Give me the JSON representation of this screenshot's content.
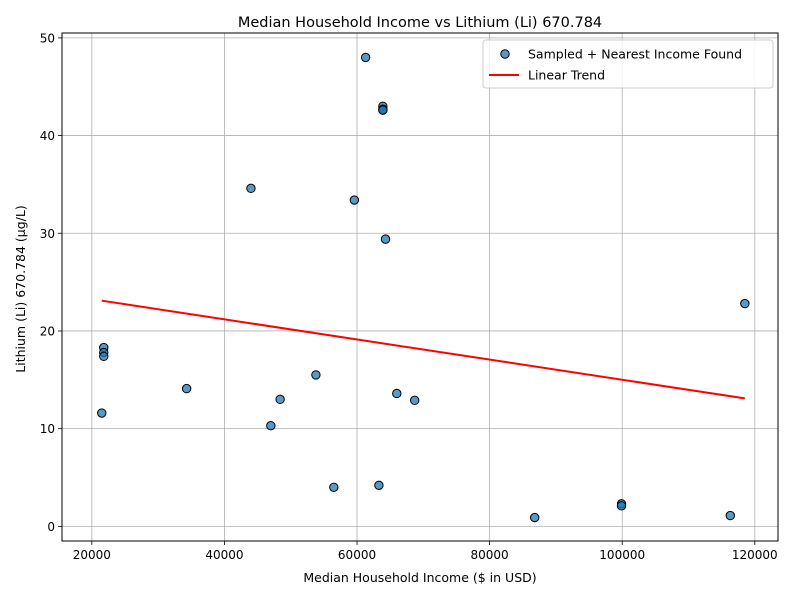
{
  "chart_data": {
    "type": "scatter",
    "title": "Median Household Income vs Lithium (Li) 670.784",
    "xlabel": "Median Household Income ($ in USD)",
    "ylabel": "Lithium (Li) 670.784 (µg/L)",
    "xlim": [
      15500,
      123500
    ],
    "ylim": [
      -1.5,
      50.5
    ],
    "xticks": [
      20000,
      40000,
      60000,
      80000,
      100000,
      120000
    ],
    "xtick_labels": [
      "20000",
      "40000",
      "60000",
      "80000",
      "100000",
      "120000"
    ],
    "yticks": [
      0,
      10,
      20,
      30,
      40,
      50
    ],
    "ytick_labels": [
      "0",
      "10",
      "20",
      "30",
      "40",
      "50"
    ],
    "grid": true,
    "legend_position": "top-right",
    "series": [
      {
        "name": "Sampled + Nearest Income Found",
        "kind": "scatter",
        "color": "#1f77b4",
        "points": [
          {
            "x": 61300,
            "y": 48.0
          },
          {
            "x": 63900,
            "y": 43.0
          },
          {
            "x": 63900,
            "y": 42.7
          },
          {
            "x": 63900,
            "y": 42.6
          },
          {
            "x": 44000,
            "y": 34.6
          },
          {
            "x": 59600,
            "y": 33.4
          },
          {
            "x": 64300,
            "y": 29.4
          },
          {
            "x": 118500,
            "y": 22.8
          },
          {
            "x": 21800,
            "y": 18.3
          },
          {
            "x": 21800,
            "y": 17.8
          },
          {
            "x": 21800,
            "y": 17.4
          },
          {
            "x": 53800,
            "y": 15.5
          },
          {
            "x": 34300,
            "y": 14.1
          },
          {
            "x": 66000,
            "y": 13.6
          },
          {
            "x": 48400,
            "y": 13.0
          },
          {
            "x": 68700,
            "y": 12.9
          },
          {
            "x": 21500,
            "y": 11.6
          },
          {
            "x": 47000,
            "y": 10.3
          },
          {
            "x": 63300,
            "y": 4.2
          },
          {
            "x": 56500,
            "y": 4.0
          },
          {
            "x": 99900,
            "y": 2.3
          },
          {
            "x": 99900,
            "y": 2.1
          },
          {
            "x": 116300,
            "y": 1.1
          },
          {
            "x": 86800,
            "y": 0.9
          }
        ]
      },
      {
        "name": "Linear Trend",
        "kind": "line",
        "color": "#ff0000",
        "points": [
          {
            "x": 21500,
            "y": 23.1
          },
          {
            "x": 118500,
            "y": 13.1
          }
        ]
      }
    ]
  }
}
